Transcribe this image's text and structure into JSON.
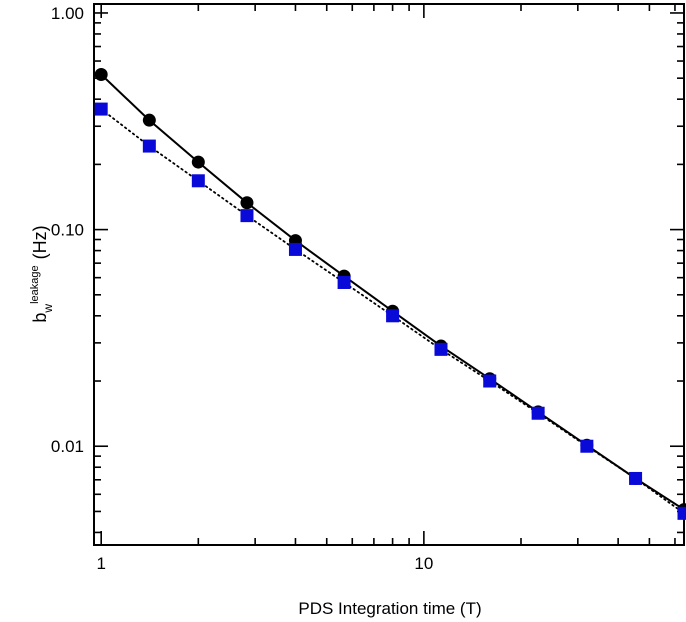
{
  "chart_data": {
    "type": "line",
    "xlabel": "PDS Integration time (T)",
    "ylabel": {
      "base": "b",
      "subscript": "w",
      "superscript": "leakage",
      "unit": "(Hz)"
    },
    "xscale": "log",
    "yscale": "log",
    "xlim": [
      0.95,
      64
    ],
    "ylim": [
      0.0035,
      1.1
    ],
    "x_ticks": [
      {
        "value": 1,
        "label": "1"
      },
      {
        "value": 10,
        "label": "10"
      }
    ],
    "y_ticks": [
      {
        "value": 0.01,
        "label": "0.01"
      },
      {
        "value": 0.1,
        "label": "0.10"
      },
      {
        "value": 1,
        "label": "1.00"
      }
    ],
    "grid": false,
    "legend": "none",
    "series": [
      {
        "marker": "circle",
        "color": "#000000",
        "line": "solid",
        "points": [
          [
            1.0,
            0.52
          ],
          [
            1.41,
            0.32
          ],
          [
            2.0,
            0.205
          ],
          [
            2.83,
            0.133
          ],
          [
            4.0,
            0.089
          ],
          [
            5.66,
            0.061
          ],
          [
            8.0,
            0.042
          ],
          [
            11.3,
            0.029
          ],
          [
            16.0,
            0.0205
          ],
          [
            22.6,
            0.0144
          ],
          [
            32.0,
            0.0101
          ],
          [
            45.3,
            0.0071
          ],
          [
            64.0,
            0.0051
          ]
        ]
      },
      {
        "marker": "square",
        "color": "#0a0ad8",
        "line": "dotted",
        "points": [
          [
            1.0,
            0.36
          ],
          [
            1.41,
            0.243
          ],
          [
            2.0,
            0.168
          ],
          [
            2.83,
            0.116
          ],
          [
            4.0,
            0.081
          ],
          [
            5.66,
            0.057
          ],
          [
            8.0,
            0.04
          ],
          [
            11.3,
            0.028
          ],
          [
            16.0,
            0.02
          ],
          [
            22.6,
            0.0142
          ],
          [
            32.0,
            0.01
          ],
          [
            45.3,
            0.0071
          ],
          [
            64.0,
            0.0049
          ]
        ]
      }
    ]
  }
}
